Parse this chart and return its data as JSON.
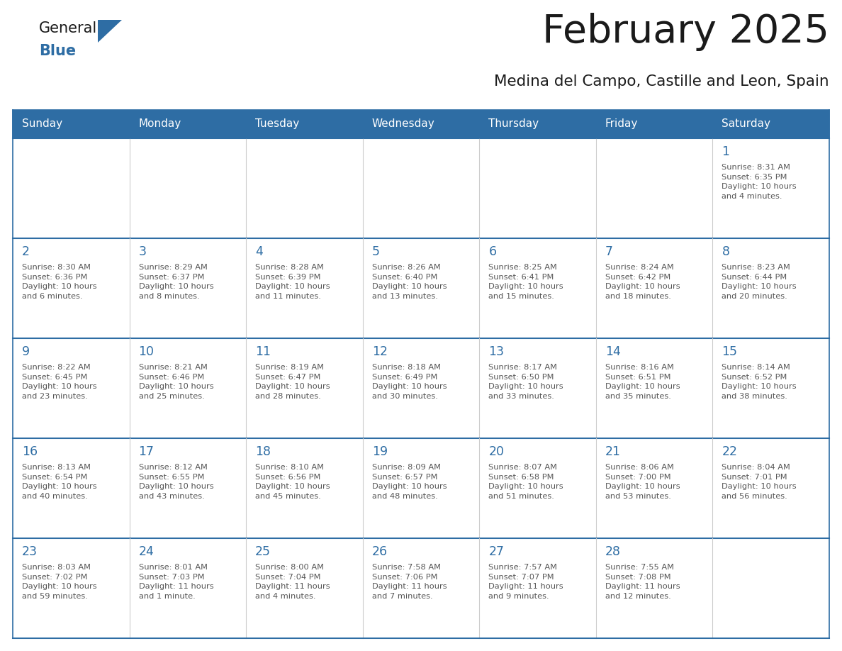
{
  "title": "February 2025",
  "subtitle": "Medina del Campo, Castille and Leon, Spain",
  "days_of_week": [
    "Sunday",
    "Monday",
    "Tuesday",
    "Wednesday",
    "Thursday",
    "Friday",
    "Saturday"
  ],
  "header_bg": "#2E6DA4",
  "header_text": "#FFFFFF",
  "cell_bg": "#FFFFFF",
  "row_sep_color": "#2E6DA4",
  "col_sep_color": "#CCCCCC",
  "outer_border_color": "#2E6DA4",
  "day_number_color": "#2E6DA4",
  "text_color": "#555555",
  "title_color": "#1A1A1A",
  "logo_general_color": "#1A1A1A",
  "logo_blue_color": "#2E6DA4",
  "weeks": [
    [
      {
        "day": null,
        "info": null
      },
      {
        "day": null,
        "info": null
      },
      {
        "day": null,
        "info": null
      },
      {
        "day": null,
        "info": null
      },
      {
        "day": null,
        "info": null
      },
      {
        "day": null,
        "info": null
      },
      {
        "day": 1,
        "info": "Sunrise: 8:31 AM\nSunset: 6:35 PM\nDaylight: 10 hours\nand 4 minutes."
      }
    ],
    [
      {
        "day": 2,
        "info": "Sunrise: 8:30 AM\nSunset: 6:36 PM\nDaylight: 10 hours\nand 6 minutes."
      },
      {
        "day": 3,
        "info": "Sunrise: 8:29 AM\nSunset: 6:37 PM\nDaylight: 10 hours\nand 8 minutes."
      },
      {
        "day": 4,
        "info": "Sunrise: 8:28 AM\nSunset: 6:39 PM\nDaylight: 10 hours\nand 11 minutes."
      },
      {
        "day": 5,
        "info": "Sunrise: 8:26 AM\nSunset: 6:40 PM\nDaylight: 10 hours\nand 13 minutes."
      },
      {
        "day": 6,
        "info": "Sunrise: 8:25 AM\nSunset: 6:41 PM\nDaylight: 10 hours\nand 15 minutes."
      },
      {
        "day": 7,
        "info": "Sunrise: 8:24 AM\nSunset: 6:42 PM\nDaylight: 10 hours\nand 18 minutes."
      },
      {
        "day": 8,
        "info": "Sunrise: 8:23 AM\nSunset: 6:44 PM\nDaylight: 10 hours\nand 20 minutes."
      }
    ],
    [
      {
        "day": 9,
        "info": "Sunrise: 8:22 AM\nSunset: 6:45 PM\nDaylight: 10 hours\nand 23 minutes."
      },
      {
        "day": 10,
        "info": "Sunrise: 8:21 AM\nSunset: 6:46 PM\nDaylight: 10 hours\nand 25 minutes."
      },
      {
        "day": 11,
        "info": "Sunrise: 8:19 AM\nSunset: 6:47 PM\nDaylight: 10 hours\nand 28 minutes."
      },
      {
        "day": 12,
        "info": "Sunrise: 8:18 AM\nSunset: 6:49 PM\nDaylight: 10 hours\nand 30 minutes."
      },
      {
        "day": 13,
        "info": "Sunrise: 8:17 AM\nSunset: 6:50 PM\nDaylight: 10 hours\nand 33 minutes."
      },
      {
        "day": 14,
        "info": "Sunrise: 8:16 AM\nSunset: 6:51 PM\nDaylight: 10 hours\nand 35 minutes."
      },
      {
        "day": 15,
        "info": "Sunrise: 8:14 AM\nSunset: 6:52 PM\nDaylight: 10 hours\nand 38 minutes."
      }
    ],
    [
      {
        "day": 16,
        "info": "Sunrise: 8:13 AM\nSunset: 6:54 PM\nDaylight: 10 hours\nand 40 minutes."
      },
      {
        "day": 17,
        "info": "Sunrise: 8:12 AM\nSunset: 6:55 PM\nDaylight: 10 hours\nand 43 minutes."
      },
      {
        "day": 18,
        "info": "Sunrise: 8:10 AM\nSunset: 6:56 PM\nDaylight: 10 hours\nand 45 minutes."
      },
      {
        "day": 19,
        "info": "Sunrise: 8:09 AM\nSunset: 6:57 PM\nDaylight: 10 hours\nand 48 minutes."
      },
      {
        "day": 20,
        "info": "Sunrise: 8:07 AM\nSunset: 6:58 PM\nDaylight: 10 hours\nand 51 minutes."
      },
      {
        "day": 21,
        "info": "Sunrise: 8:06 AM\nSunset: 7:00 PM\nDaylight: 10 hours\nand 53 minutes."
      },
      {
        "day": 22,
        "info": "Sunrise: 8:04 AM\nSunset: 7:01 PM\nDaylight: 10 hours\nand 56 minutes."
      }
    ],
    [
      {
        "day": 23,
        "info": "Sunrise: 8:03 AM\nSunset: 7:02 PM\nDaylight: 10 hours\nand 59 minutes."
      },
      {
        "day": 24,
        "info": "Sunrise: 8:01 AM\nSunset: 7:03 PM\nDaylight: 11 hours\nand 1 minute."
      },
      {
        "day": 25,
        "info": "Sunrise: 8:00 AM\nSunset: 7:04 PM\nDaylight: 11 hours\nand 4 minutes."
      },
      {
        "day": 26,
        "info": "Sunrise: 7:58 AM\nSunset: 7:06 PM\nDaylight: 11 hours\nand 7 minutes."
      },
      {
        "day": 27,
        "info": "Sunrise: 7:57 AM\nSunset: 7:07 PM\nDaylight: 11 hours\nand 9 minutes."
      },
      {
        "day": 28,
        "info": "Sunrise: 7:55 AM\nSunset: 7:08 PM\nDaylight: 11 hours\nand 12 minutes."
      },
      {
        "day": null,
        "info": null
      }
    ]
  ]
}
